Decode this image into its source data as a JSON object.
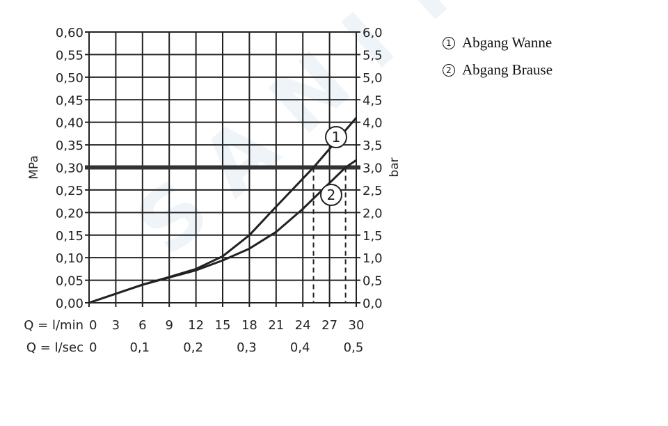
{
  "chart_data": {
    "type": "line",
    "xlabel_rows": [
      {
        "label": "Q = l/min",
        "ticks": [
          "0",
          "3",
          "6",
          "9",
          "12",
          "15",
          "18",
          "21",
          "24",
          "27",
          "30"
        ],
        "values": [
          0,
          3,
          6,
          9,
          12,
          15,
          18,
          21,
          24,
          27,
          30
        ]
      },
      {
        "label": "Q = l/sec",
        "ticks": [
          "0",
          "0,1",
          "0,2",
          "0,3",
          "0,4",
          "0,5"
        ],
        "values": [
          0,
          6,
          12,
          18,
          24,
          30
        ]
      }
    ],
    "ylabel_left": "MPa",
    "ylabel_right": "bar",
    "yticks_left": [
      "0,00",
      "0,05",
      "0,10",
      "0,15",
      "0,20",
      "0,25",
      "0,30",
      "0,35",
      "0,40",
      "0,45",
      "0,50",
      "0,55",
      "0,60"
    ],
    "yticks_right": [
      "0,0",
      "0,5",
      "1,0",
      "1,5",
      "2,0",
      "2,5",
      "3,0",
      "3,5",
      "4,0",
      "4,5",
      "5,0",
      "5,5",
      "6,0"
    ],
    "xlim": [
      0,
      30
    ],
    "ylim": [
      0,
      0.6
    ],
    "grid": true,
    "reference_line": {
      "y": 0.3
    },
    "series": [
      {
        "name": "1",
        "x": [
          0,
          3,
          6,
          9,
          12,
          15,
          18,
          21,
          25.2,
          30
        ],
        "y": [
          0,
          0.02,
          0.04,
          0.057,
          0.075,
          0.103,
          0.15,
          0.213,
          0.3,
          0.41
        ],
        "drop_x": 25.2
      },
      {
        "name": "2",
        "x": [
          0,
          3,
          6,
          9,
          12,
          15,
          18,
          21,
          24,
          28.8,
          30
        ],
        "y": [
          0,
          0.02,
          0.04,
          0.056,
          0.072,
          0.094,
          0.12,
          0.157,
          0.208,
          0.3,
          0.316
        ],
        "drop_x": 28.8
      }
    ],
    "legend": [
      {
        "num": "1",
        "label": "Abgang Wanne"
      },
      {
        "num": "2",
        "label": "Abgang Brause"
      }
    ],
    "line_color": "#222222"
  },
  "watermark": "SANITINO"
}
